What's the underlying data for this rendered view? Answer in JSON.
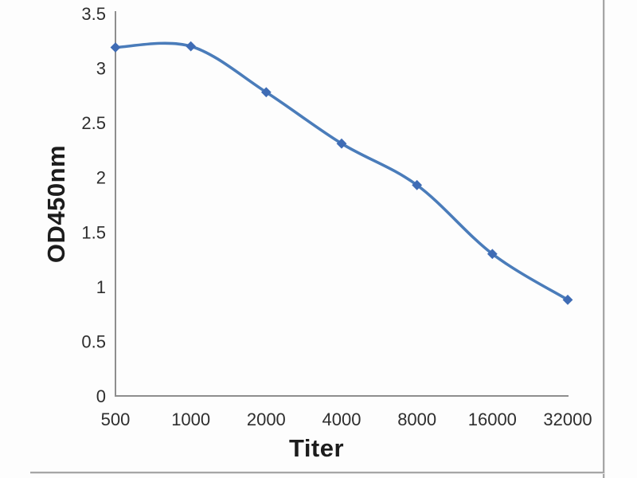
{
  "chart_data": {
    "type": "line",
    "title": "",
    "xlabel": "Titer",
    "ylabel": "OD450nm",
    "categories": [
      "500",
      "1000",
      "2000",
      "4000",
      "8000",
      "16000",
      "32000"
    ],
    "series": [
      {
        "name": "OD450nm",
        "values": [
          3.19,
          3.2,
          2.78,
          2.31,
          1.93,
          1.3,
          0.88
        ]
      }
    ],
    "y_ticks": [
      "0",
      "0.5",
      "1",
      "1.5",
      "2",
      "2.5",
      "3",
      "3.5"
    ],
    "y_tick_values": [
      0,
      0.5,
      1,
      1.5,
      2,
      2.5,
      3,
      3.5
    ],
    "ylim": [
      0,
      3.5
    ],
    "grid": false,
    "legend_position": "none",
    "line_style": "smoothed",
    "marker": "diamond",
    "colors": {
      "line": "#4a7cba",
      "marker": "#3f6cb5",
      "axis": "#8e8e8e",
      "tick_label": "#2e2e2e",
      "frame": "#a6a6a6"
    }
  }
}
